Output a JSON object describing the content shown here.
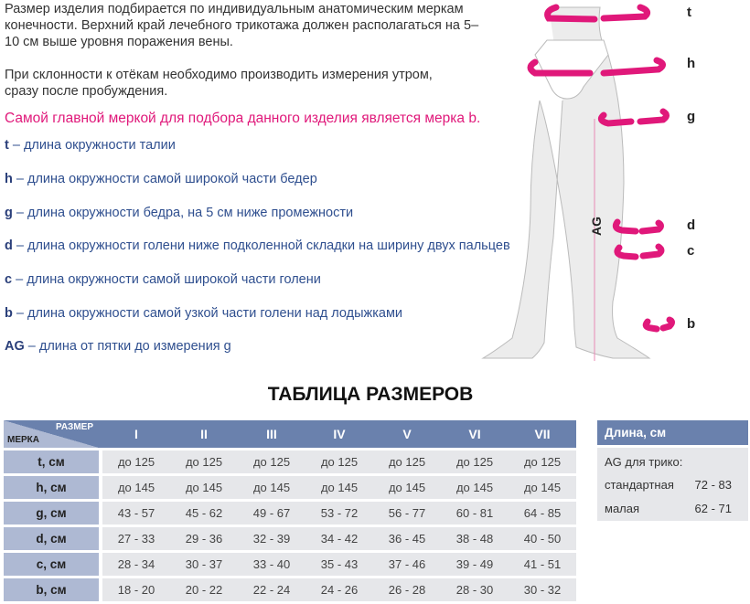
{
  "intro": {
    "p1": "Размер изделия подбирается по индивидуальным анатомическим меркам конечности. Верхний край лечебного трикотажа должен располагаться на 5–10 см выше уровня поражения вены.",
    "p2": "При склонности к отёкам необходимо производить измерения утром, сразу после пробуждения.",
    "accent": "Самой главной меркой для подбора данного изделия является мерка b."
  },
  "definitions": [
    {
      "key": "t",
      "text": " – длина окружности талии"
    },
    {
      "key": "h",
      "text": " – длина окружности самой широкой части бедер"
    },
    {
      "key": "g",
      "text": " – длина окружности бедра, на 5 см ниже промежности"
    },
    {
      "key": "d",
      "text": " – длина окружности голени ниже подколенной складки на ширину двух пальцев"
    },
    {
      "key": "c",
      "text": " – длина окружности самой широкой части голени"
    },
    {
      "key": "b",
      "text": " – длина окружности самой узкой части голени над лодыжками"
    },
    {
      "key": "AG",
      "text": " – длина от пятки до измерения g"
    }
  ],
  "figure": {
    "labels": [
      "t",
      "h",
      "g",
      "d",
      "c",
      "b"
    ],
    "ag": "AG",
    "accent_color": "#e0187a"
  },
  "table": {
    "title": "ТАБЛИЦА РАЗМЕРОВ",
    "corner_size": "РАЗМЕР",
    "corner_measure": "МЕРКА",
    "sizes": [
      "I",
      "II",
      "III",
      "IV",
      "V",
      "VI",
      "VII"
    ],
    "rows": [
      {
        "label": "t, см",
        "values": [
          "до 125",
          "до 125",
          "до 125",
          "до 125",
          "до 125",
          "до 125",
          "до 125"
        ]
      },
      {
        "label": "h, см",
        "values": [
          "до 145",
          "до 145",
          "до 145",
          "до 145",
          "до 145",
          "до 145",
          "до 145"
        ]
      },
      {
        "label": "g, см",
        "values": [
          "43 - 57",
          "45 - 62",
          "49 - 67",
          "53 - 72",
          "56 - 77",
          "60 - 81",
          "64 - 85"
        ]
      },
      {
        "label": "d, см",
        "values": [
          "27 - 33",
          "29 - 36",
          "32 - 39",
          "34 - 42",
          "36 - 45",
          "38 - 48",
          "40 - 50"
        ]
      },
      {
        "label": "c, см",
        "values": [
          "28 - 34",
          "30 - 37",
          "33 - 40",
          "35 - 43",
          "37 - 46",
          "39 - 49",
          "41 - 51"
        ]
      },
      {
        "label": "b, см",
        "values": [
          "18 - 20",
          "20 - 22",
          "22 - 24",
          "24 - 26",
          "26 - 28",
          "28 - 30",
          "30 - 32"
        ]
      }
    ]
  },
  "length": {
    "header": "Длина, см",
    "subtitle": "AG для трико:",
    "rows": [
      {
        "label": "стандартная",
        "value": "72 - 83"
      },
      {
        "label": "малая",
        "value": "62 - 71"
      }
    ]
  }
}
